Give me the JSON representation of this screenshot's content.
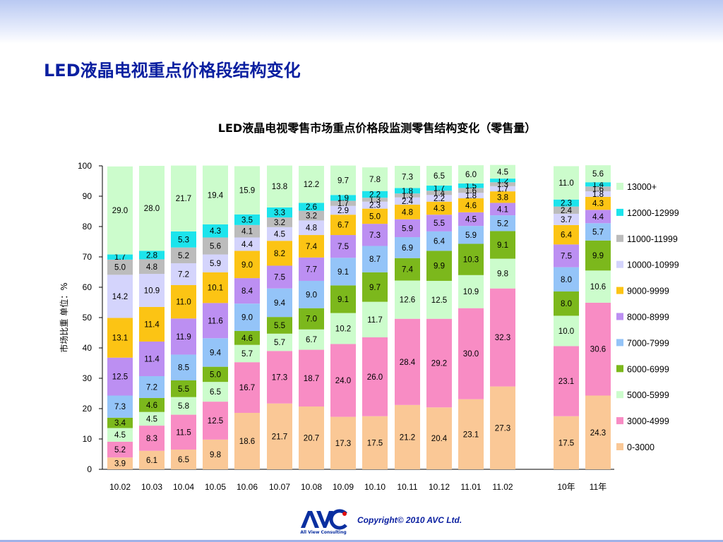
{
  "page_title": "LED液晶电视重点价格段结构变化",
  "footer": {
    "copyright": "Copyright© 2010 AVC Ltd.",
    "logo_text": "AVC",
    "logo_subtext": "All View Consulting"
  },
  "chart_data": {
    "type": "bar",
    "stacked": true,
    "title": "LED液晶电视零售市场重点价格段监测零售结构变化（零售量）",
    "ylabel": "市场比重 单位：%",
    "xlabel": "",
    "ylim": [
      0,
      100
    ],
    "yticks": [
      0,
      10,
      20,
      30,
      40,
      50,
      60,
      70,
      80,
      90,
      100
    ],
    "grid": false,
    "legend_position": "right",
    "categories": [
      "10.02",
      "10.03",
      "10.04",
      "10.05",
      "10.06",
      "10.07",
      "10.08",
      "10.09",
      "10.10",
      "10.11",
      "10.12",
      "11.01",
      "11.02",
      "10年",
      "11年"
    ],
    "series": [
      {
        "name": "0-3000",
        "color": "#fac896",
        "values": [
          3.9,
          6.1,
          6.5,
          9.8,
          18.6,
          21.7,
          20.7,
          17.3,
          17.5,
          21.2,
          20.4,
          23.1,
          27.3,
          17.5,
          24.3
        ]
      },
      {
        "name": "3000-4999",
        "color": "#f88cc4",
        "values": [
          5.2,
          8.3,
          11.5,
          12.5,
          16.7,
          17.3,
          18.7,
          24.0,
          26.0,
          28.4,
          29.2,
          30.0,
          32.3,
          23.1,
          30.6
        ]
      },
      {
        "name": "5000-5999",
        "color": "#ccfccc",
        "values": [
          4.5,
          4.5,
          5.8,
          6.5,
          5.7,
          5.7,
          6.7,
          10.2,
          11.7,
          12.6,
          12.5,
          10.9,
          9.8,
          10.0,
          10.6
        ]
      },
      {
        "name": "6000-6999",
        "color": "#7cb81c",
        "values": [
          3.4,
          4.6,
          5.5,
          5.0,
          4.6,
          5.5,
          7.0,
          9.1,
          9.7,
          7.4,
          9.9,
          10.3,
          9.1,
          8.0,
          9.9
        ]
      },
      {
        "name": "7000-7999",
        "color": "#94c4f8",
        "values": [
          7.3,
          7.2,
          8.5,
          9.4,
          9.0,
          9.4,
          9.0,
          9.1,
          8.7,
          6.9,
          6.4,
          5.9,
          5.2,
          8.0,
          5.7
        ]
      },
      {
        "name": "8000-8999",
        "color": "#bc8ff2",
        "values": [
          12.5,
          11.4,
          11.9,
          11.6,
          8.4,
          7.5,
          7.7,
          7.5,
          7.3,
          5.9,
          5.5,
          4.5,
          4.1,
          7.5,
          4.4
        ]
      },
      {
        "name": "9000-9999",
        "color": "#fcc414",
        "values": [
          13.1,
          11.4,
          11.0,
          10.1,
          9.0,
          8.2,
          7.4,
          6.7,
          5.0,
          4.8,
          4.3,
          4.6,
          3.8,
          6.4,
          4.3
        ]
      },
      {
        "name": "10000-10999",
        "color": "#d4d4fc",
        "values": [
          14.2,
          10.9,
          7.2,
          5.9,
          4.4,
          4.5,
          4.8,
          2.9,
          2.3,
          2.4,
          2.2,
          1.8,
          1.7,
          3.7,
          1.8
        ]
      },
      {
        "name": "11000-11999",
        "color": "#bcbcbc",
        "values": [
          5.0,
          4.8,
          5.2,
          5.6,
          4.1,
          3.2,
          3.2,
          1.7,
          1.3,
          1.3,
          1.4,
          1.6,
          1.3,
          2.4,
          1.6
        ]
      },
      {
        "name": "12000-12999",
        "color": "#1ce4ec",
        "values": [
          1.7,
          2.8,
          5.3,
          4.3,
          3.5,
          3.3,
          2.6,
          1.9,
          2.2,
          1.8,
          1.7,
          1.5,
          1.2,
          2.3,
          1.4
        ]
      },
      {
        "name": "13000+",
        "color": "#ccfccc",
        "values": [
          29.0,
          28.0,
          21.7,
          19.4,
          15.9,
          13.8,
          12.2,
          9.7,
          7.8,
          7.3,
          6.5,
          6.0,
          4.5,
          11.0,
          5.6
        ]
      }
    ]
  }
}
